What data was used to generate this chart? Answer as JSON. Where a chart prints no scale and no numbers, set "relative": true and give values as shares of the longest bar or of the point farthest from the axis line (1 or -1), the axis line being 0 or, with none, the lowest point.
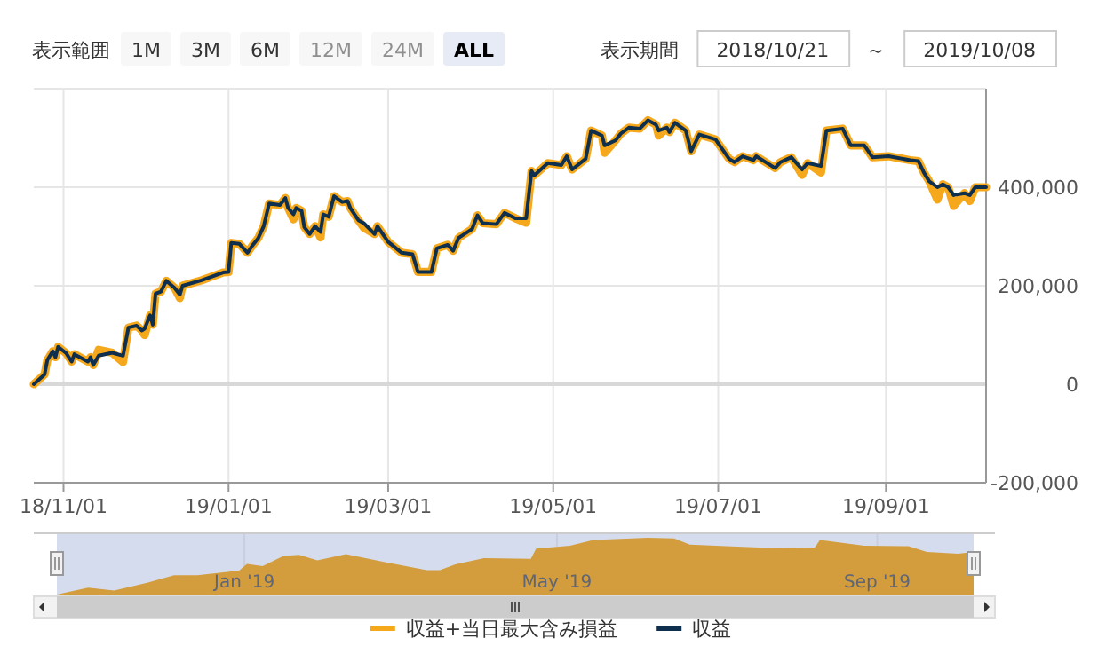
{
  "chart_data": [
    {
      "type": "line",
      "annotations": [
        "表示範囲",
        "1M",
        "3M",
        "6M",
        "12M",
        "24M",
        "ALL",
        "表示期間",
        "2018/10/21",
        "～",
        "2019/10/08"
      ],
      "x": [
        "2018-10-21",
        "2018-10-25",
        "2018-10-26",
        "2018-10-28",
        "2018-10-29",
        "2018-10-30",
        "2018-11-02",
        "2018-11-04",
        "2018-11-05",
        "2018-11-10",
        "2018-11-11",
        "2018-11-12",
        "2018-11-14",
        "2018-11-19",
        "2018-11-23",
        "2018-11-25",
        "2018-11-28",
        "2018-11-30",
        "2018-12-01",
        "2018-12-03",
        "2018-12-04",
        "2018-12-05",
        "2018-12-07",
        "2018-12-09",
        "2018-12-12",
        "2018-12-14",
        "2018-12-15",
        "2018-12-22",
        "2018-12-30",
        "2019-01-01",
        "2019-01-02",
        "2019-01-05",
        "2019-01-08",
        "2019-01-10",
        "2019-01-12",
        "2019-01-14",
        "2019-01-16",
        "2019-01-20",
        "2019-01-22",
        "2019-01-23",
        "2019-01-25",
        "2019-01-26",
        "2019-01-28",
        "2019-01-29",
        "2019-01-31",
        "2019-02-02",
        "2019-02-04",
        "2019-02-05",
        "2019-02-07",
        "2019-02-09",
        "2019-02-12",
        "2019-02-14",
        "2019-02-15",
        "2019-02-18",
        "2019-02-20",
        "2019-02-24",
        "2019-02-25",
        "2019-03-01",
        "2019-03-06",
        "2019-03-10",
        "2019-03-12",
        "2019-03-17",
        "2019-03-19",
        "2019-03-23",
        "2019-03-25",
        "2019-03-27",
        "2019-04-01",
        "2019-04-03",
        "2019-04-05",
        "2019-04-10",
        "2019-04-13",
        "2019-04-17",
        "2019-04-21",
        "2019-04-23",
        "2019-04-24",
        "2019-04-29",
        "2019-05-04",
        "2019-05-06",
        "2019-05-08",
        "2019-05-13",
        "2019-05-15",
        "2019-05-19",
        "2019-05-20",
        "2019-05-24",
        "2019-05-26",
        "2019-05-29",
        "2019-06-02",
        "2019-06-05",
        "2019-06-08",
        "2019-06-09",
        "2019-06-12",
        "2019-06-13",
        "2019-06-15",
        "2019-06-19",
        "2019-06-21",
        "2019-06-24",
        "2019-06-30",
        "2019-07-05",
        "2019-07-07",
        "2019-07-10",
        "2019-07-14",
        "2019-07-15",
        "2019-07-22",
        "2019-07-24",
        "2019-07-28",
        "2019-08-01",
        "2019-08-03",
        "2019-08-08",
        "2019-08-10",
        "2019-08-16",
        "2019-08-19",
        "2019-08-24",
        "2019-08-27",
        "2019-09-02",
        "2019-09-10",
        "2019-09-13",
        "2019-09-15",
        "2019-09-17",
        "2019-09-20",
        "2019-09-22",
        "2019-09-24",
        "2019-09-26",
        "2019-09-30",
        "2019-10-02",
        "2019-10-04",
        "2019-10-08"
      ],
      "series": [
        {
          "name": "収益+当日最大含み損益",
          "color": "#f5a81c",
          "values": [
            0,
            20000,
            49000,
            67000,
            55000,
            76000,
            63000,
            46000,
            61000,
            46000,
            55000,
            39000,
            70000,
            64000,
            45000,
            115000,
            119000,
            109000,
            100000,
            140000,
            121000,
            184000,
            188000,
            210000,
            196000,
            175000,
            200000,
            211000,
            227000,
            228000,
            287000,
            285000,
            267000,
            283000,
            297000,
            321000,
            367000,
            364000,
            378000,
            358000,
            335000,
            358000,
            352000,
            319000,
            305000,
            321000,
            298000,
            345000,
            340000,
            382000,
            370000,
            372000,
            358000,
            333000,
            318000,
            305000,
            321000,
            289000,
            267000,
            264000,
            228000,
            228000,
            276000,
            283000,
            271000,
            297000,
            315000,
            343000,
            327000,
            325000,
            348000,
            337000,
            328000,
            433000,
            424000,
            449000,
            445000,
            463000,
            436000,
            458000,
            515000,
            505000,
            470000,
            495000,
            509000,
            521000,
            519000,
            536000,
            527000,
            505000,
            521000,
            512000,
            531000,
            515000,
            473000,
            507000,
            497000,
            458000,
            451000,
            463000,
            455000,
            463000,
            439000,
            451000,
            461000,
            425000,
            449000,
            430000,
            515000,
            519000,
            485000,
            485000,
            461000,
            463000,
            455000,
            453000,
            430000,
            412000,
            375000,
            406000,
            400000,
            362000,
            388000,
            372000,
            400000,
            400000
          ]
        },
        {
          "name": "収益",
          "color": "#0e2f4d",
          "values": [
            0,
            20000,
            49000,
            67000,
            55000,
            76000,
            63000,
            46000,
            61000,
            46000,
            55000,
            39000,
            58000,
            64000,
            58000,
            115000,
            119000,
            109000,
            113000,
            140000,
            121000,
            184000,
            188000,
            210000,
            196000,
            182000,
            200000,
            211000,
            227000,
            228000,
            287000,
            285000,
            267000,
            283000,
            297000,
            321000,
            367000,
            364000,
            378000,
            358000,
            345000,
            358000,
            352000,
            319000,
            305000,
            321000,
            309000,
            345000,
            340000,
            382000,
            370000,
            372000,
            358000,
            333000,
            327000,
            305000,
            321000,
            289000,
            267000,
            264000,
            228000,
            228000,
            276000,
            283000,
            271000,
            297000,
            315000,
            343000,
            327000,
            325000,
            348000,
            337000,
            337000,
            433000,
            424000,
            449000,
            445000,
            463000,
            436000,
            458000,
            515000,
            505000,
            485000,
            495000,
            509000,
            521000,
            519000,
            536000,
            527000,
            515000,
            521000,
            512000,
            531000,
            515000,
            473000,
            507000,
            497000,
            458000,
            451000,
            463000,
            455000,
            463000,
            439000,
            451000,
            461000,
            436000,
            449000,
            443000,
            515000,
            519000,
            485000,
            485000,
            461000,
            463000,
            455000,
            453000,
            430000,
            412000,
            400000,
            406000,
            400000,
            384000,
            388000,
            384000,
            400000,
            400000
          ]
        }
      ],
      "xlim": [
        "2018-10-21",
        "2019-10-08"
      ],
      "xticks": [
        {
          "value": "2018-11-01",
          "label": "18/11/01"
        },
        {
          "value": "2019-01-01",
          "label": "19/01/01"
        },
        {
          "value": "2019-03-01",
          "label": "19/03/01"
        },
        {
          "value": "2019-05-01",
          "label": "19/05/01"
        },
        {
          "value": "2019-07-01",
          "label": "19/07/01"
        },
        {
          "value": "2019-09-01",
          "label": "19/09/01"
        }
      ],
      "ylim": [
        -200000,
        600000
      ],
      "yticks": [
        {
          "value": -200000,
          "label": "-200,000"
        },
        0,
        {
          "value": 200000,
          "label": "200,000"
        },
        {
          "value": 400000,
          "label": "400,000"
        }
      ],
      "grid": true,
      "legend": "bottom"
    },
    {
      "type": "area",
      "relative": true,
      "color": "#d39c3c",
      "x": [
        "2018-10-21",
        "2018-11-02",
        "2018-11-12",
        "2018-11-25",
        "2018-12-05",
        "2018-12-14",
        "2018-12-30",
        "2019-01-02",
        "2019-01-08",
        "2019-01-16",
        "2019-01-22",
        "2019-01-29",
        "2019-02-09",
        "2019-02-24",
        "2019-03-12",
        "2019-03-17",
        "2019-03-23",
        "2019-04-03",
        "2019-04-21",
        "2019-04-23",
        "2019-05-06",
        "2019-05-15",
        "2019-06-05",
        "2019-06-15",
        "2019-06-21",
        "2019-07-05",
        "2019-07-22",
        "2019-08-08",
        "2019-08-10",
        "2019-08-27",
        "2019-09-13",
        "2019-09-20",
        "2019-10-02",
        "2019-10-08"
      ],
      "values": [
        0,
        0.12,
        0.07,
        0.21,
        0.34,
        0.34,
        0.42,
        0.54,
        0.5,
        0.68,
        0.7,
        0.6,
        0.71,
        0.57,
        0.43,
        0.43,
        0.53,
        0.64,
        0.63,
        0.81,
        0.86,
        0.96,
        1,
        0.99,
        0.88,
        0.85,
        0.82,
        0.83,
        0.96,
        0.86,
        0.85,
        0.75,
        0.72,
        0.75
      ],
      "xlim": [
        "2018-10-21",
        "2019-10-08"
      ],
      "xticks": [
        {
          "value": "2019-01-01",
          "label": "Jan '19"
        },
        {
          "value": "2019-05-01",
          "label": "May '19"
        },
        {
          "value": "2019-09-01",
          "label": "Sep '19"
        }
      ],
      "grid": "x"
    }
  ]
}
